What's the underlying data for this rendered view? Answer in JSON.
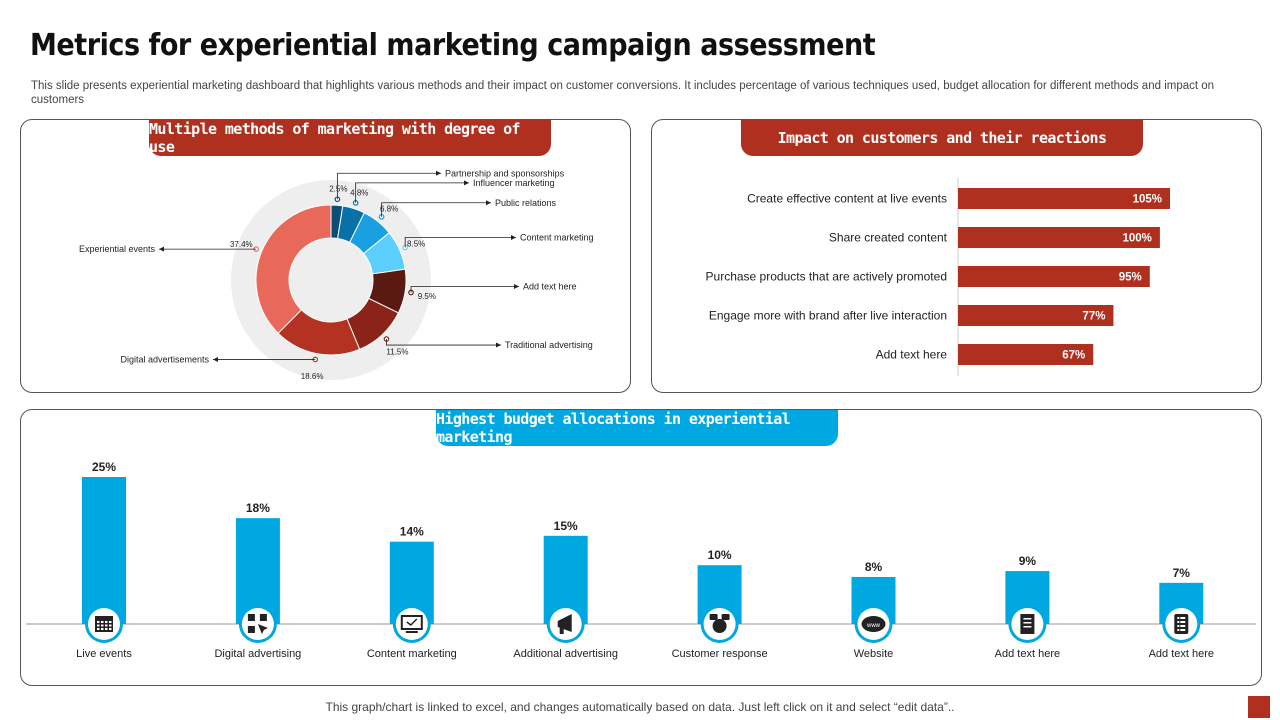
{
  "title": "Metrics for experiential marketing campaign assessment",
  "subtitle": "This slide presents experiential marketing dashboard that highlights various methods and their impact on customer conversions. It includes percentage of various techniques used, budget allocation for different methods and impact on customers",
  "footer": "This graph/chart is linked to excel, and changes automatically based on data. Just left click on it and select “edit data”..",
  "colors": {
    "red": "#b03020",
    "blue": "#00a8e1"
  },
  "panels": {
    "methods_tab": "Multiple methods of marketing with degree of use",
    "impact_tab": "Impact on customers and their reactions",
    "budget_tab": "Highest budget allocations in experiential marketing"
  },
  "chart_data": [
    {
      "type": "pie",
      "variant": "donut",
      "slices": [
        {
          "label": "Partnership and sponsorships",
          "value": 2.5,
          "value_label": "2.5%",
          "color": "#0b4f79"
        },
        {
          "label": "Influencer marketing",
          "value": 4.8,
          "value_label": "4.8%",
          "color": "#0872a8"
        },
        {
          "label": "Public relations",
          "value": 6.8,
          "value_label": "6.8%",
          "color": "#1aa0e0"
        },
        {
          "label": "Content marketing",
          "value": 8.5,
          "value_label": "8.5%",
          "color": "#5ccfff"
        },
        {
          "label": "Add text here",
          "value": 9.5,
          "value_label": "9.5%",
          "color": "#5a1a12"
        },
        {
          "label": "Traditional advertising",
          "value": 11.5,
          "value_label": "11.5%",
          "color": "#8a2418"
        },
        {
          "label": "Digital advertisements",
          "value": 18.6,
          "value_label": "18.6%",
          "color": "#b33222"
        },
        {
          "label": "Experiential events",
          "value": 37.4,
          "value_label": "37.4%",
          "color": "#e8685a"
        }
      ]
    },
    {
      "type": "bar",
      "orientation": "horizontal",
      "categories": [
        "Create effective content at live events",
        "Share created content",
        "Purchase products that are actively promoted",
        "Engage more with brand after live interaction",
        "Add text here"
      ],
      "values": [
        105,
        100,
        95,
        77,
        67
      ],
      "value_labels": [
        "105%",
        "100%",
        "95%",
        "77%",
        "67%"
      ],
      "color": "#b03020"
    },
    {
      "type": "bar",
      "categories": [
        "Live events",
        "Digital advertising",
        "Content marketing",
        "Additional advertising",
        "Customer response",
        "Website",
        "Add text here",
        "Add text here"
      ],
      "values": [
        25,
        18,
        14,
        15,
        10,
        8,
        9,
        7
      ],
      "value_labels": [
        "25%",
        "18%",
        "14%",
        "15%",
        "10%",
        "8%",
        "9%",
        "7%"
      ],
      "icons": [
        "calendar-icon",
        "digital-ad-icon",
        "monitor-icon",
        "megaphone-icon",
        "chat-icon",
        "www-cloud-icon",
        "document-icon",
        "list-icon"
      ],
      "color": "#00a8e1"
    }
  ]
}
